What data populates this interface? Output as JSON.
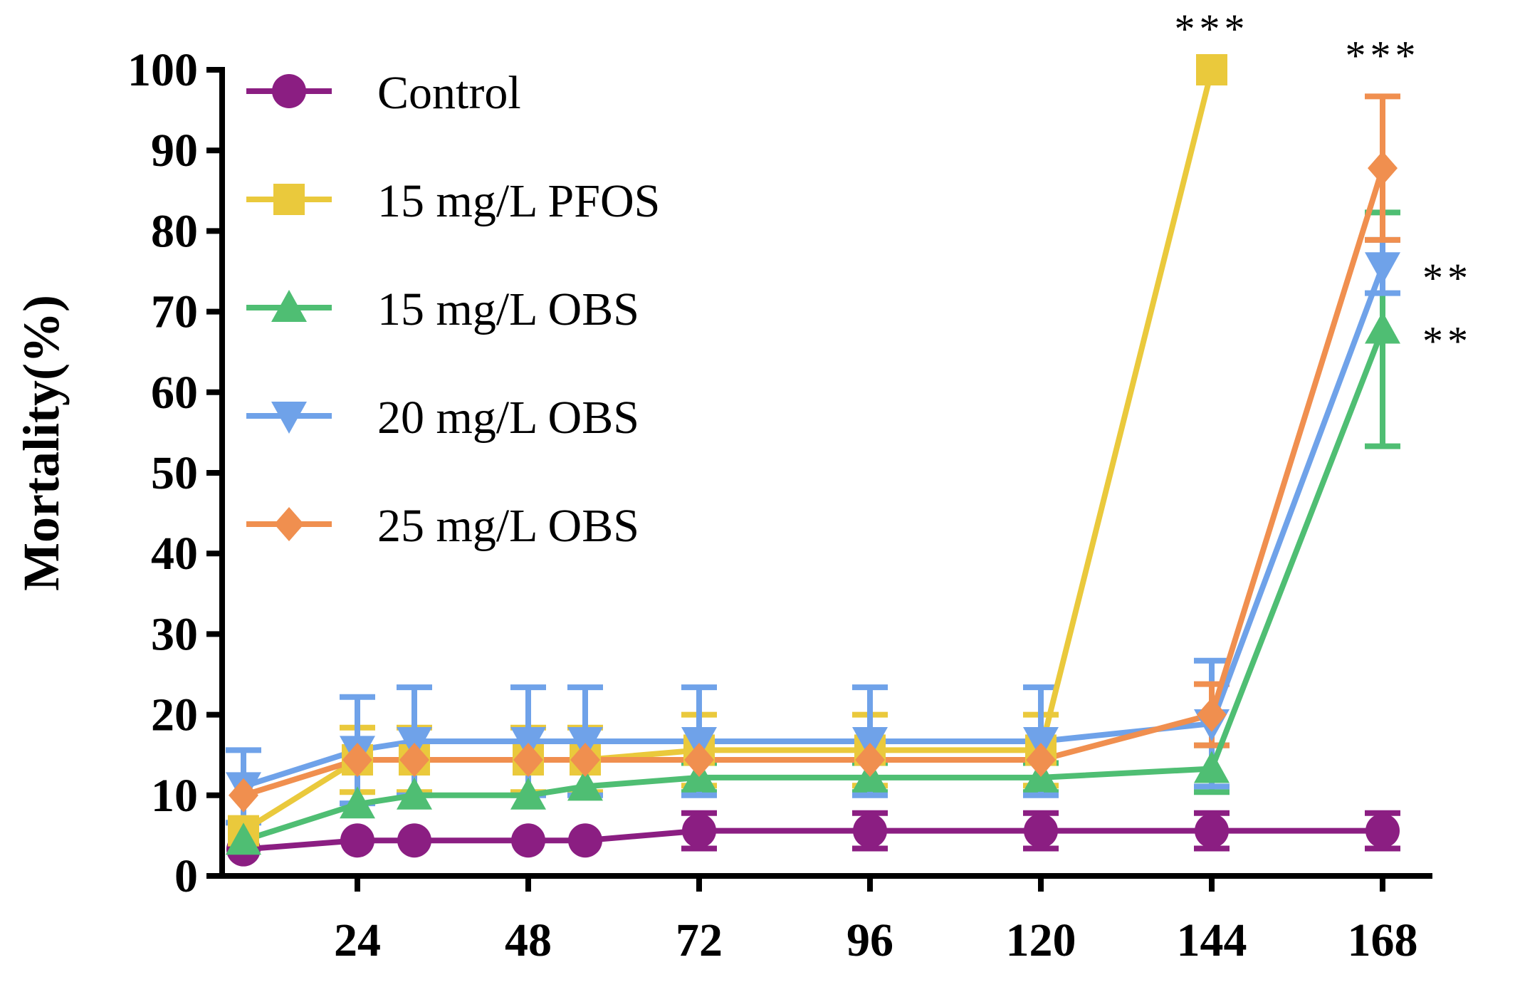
{
  "chart_data": {
    "type": "line",
    "title": "",
    "xlabel": "",
    "ylabel": "Mortality(%)",
    "xlim": [
      5,
      175
    ],
    "ylim": [
      0,
      100
    ],
    "xticks": [
      24,
      48,
      72,
      96,
      120,
      144,
      168
    ],
    "yticks": [
      0,
      10,
      20,
      30,
      40,
      50,
      60,
      70,
      80,
      90,
      100
    ],
    "grid": false,
    "legend_position": "top-left",
    "series": [
      {
        "name": "Control",
        "color": "#8b1e82",
        "marker": "circle",
        "points": [
          {
            "x": 8,
            "y": 3.3,
            "err": 0
          },
          {
            "x": 24,
            "y": 4.4,
            "err": 0
          },
          {
            "x": 32,
            "y": 4.4,
            "err": 0
          },
          {
            "x": 48,
            "y": 4.4,
            "err": 0
          },
          {
            "x": 56,
            "y": 4.4,
            "err": 0
          },
          {
            "x": 72,
            "y": 5.6,
            "err": 2.2
          },
          {
            "x": 96,
            "y": 5.6,
            "err": 2.2
          },
          {
            "x": 120,
            "y": 5.6,
            "err": 2.2
          },
          {
            "x": 144,
            "y": 5.6,
            "err": 2.2
          },
          {
            "x": 168,
            "y": 5.6,
            "err": 2.2
          }
        ]
      },
      {
        "name": "15 mg/L PFOS",
        "color": "#eac93c",
        "marker": "square",
        "points": [
          {
            "x": 8,
            "y": 5.6,
            "err": 0
          },
          {
            "x": 24,
            "y": 14.4,
            "err": 4
          },
          {
            "x": 32,
            "y": 14.4,
            "err": 4
          },
          {
            "x": 48,
            "y": 14.4,
            "err": 4
          },
          {
            "x": 56,
            "y": 14.4,
            "err": 4
          },
          {
            "x": 72,
            "y": 15.6,
            "err": 4.4
          },
          {
            "x": 96,
            "y": 15.6,
            "err": 4.4
          },
          {
            "x": 120,
            "y": 15.6,
            "err": 4.4
          },
          {
            "x": 144,
            "y": 100,
            "err": 0
          }
        ]
      },
      {
        "name": "15 mg/L OBS",
        "color": "#4fbe73",
        "marker": "triangle-up",
        "points": [
          {
            "x": 8,
            "y": 4.4,
            "err": 0
          },
          {
            "x": 24,
            "y": 8.9,
            "err": 0
          },
          {
            "x": 32,
            "y": 10,
            "err": 0
          },
          {
            "x": 48,
            "y": 10,
            "err": 0
          },
          {
            "x": 56,
            "y": 11.1,
            "err": 0
          },
          {
            "x": 72,
            "y": 12.2,
            "err": 1.8
          },
          {
            "x": 96,
            "y": 12.2,
            "err": 1.8
          },
          {
            "x": 120,
            "y": 12.2,
            "err": 1.8
          },
          {
            "x": 144,
            "y": 13.3,
            "err": 2.9
          },
          {
            "x": 168,
            "y": 67.8,
            "err": 14.5
          }
        ]
      },
      {
        "name": "20 mg/L OBS",
        "color": "#6fa2e9",
        "marker": "triangle-down",
        "points": [
          {
            "x": 8,
            "y": 11.1,
            "err": 4.5
          },
          {
            "x": 24,
            "y": 15.6,
            "err": 6.6
          },
          {
            "x": 32,
            "y": 16.7,
            "err": 6.7
          },
          {
            "x": 48,
            "y": 16.7,
            "err": 6.7
          },
          {
            "x": 56,
            "y": 16.7,
            "err": 6.7
          },
          {
            "x": 72,
            "y": 16.7,
            "err": 6.7
          },
          {
            "x": 96,
            "y": 16.7,
            "err": 6.7
          },
          {
            "x": 120,
            "y": 16.7,
            "err": 6.7
          },
          {
            "x": 144,
            "y": 18.9,
            "err": 7.8
          },
          {
            "x": 168,
            "y": 75.6,
            "err": 3.3
          }
        ]
      },
      {
        "name": "25 mg/L OBS",
        "color": "#f08f4f",
        "marker": "diamond",
        "points": [
          {
            "x": 8,
            "y": 10,
            "err": 0
          },
          {
            "x": 24,
            "y": 14.4,
            "err": 0
          },
          {
            "x": 32,
            "y": 14.4,
            "err": 0
          },
          {
            "x": 48,
            "y": 14.4,
            "err": 0
          },
          {
            "x": 56,
            "y": 14.4,
            "err": 0
          },
          {
            "x": 72,
            "y": 14.4,
            "err": 0
          },
          {
            "x": 96,
            "y": 14.4,
            "err": 0
          },
          {
            "x": 120,
            "y": 14.4,
            "err": 0
          },
          {
            "x": 144,
            "y": 20,
            "err": 3.8
          },
          {
            "x": 168,
            "y": 87.8,
            "err": 8.9
          }
        ]
      }
    ],
    "annotations": [
      {
        "text": "***",
        "x": 144,
        "y": 100,
        "anchor": "above"
      },
      {
        "text": "***",
        "x": 168,
        "y": 96.7,
        "anchor": "above"
      },
      {
        "text": "**",
        "x": 168,
        "y": 75.6,
        "anchor": "right"
      },
      {
        "text": "**",
        "x": 168,
        "y": 67.8,
        "anchor": "right"
      }
    ]
  }
}
